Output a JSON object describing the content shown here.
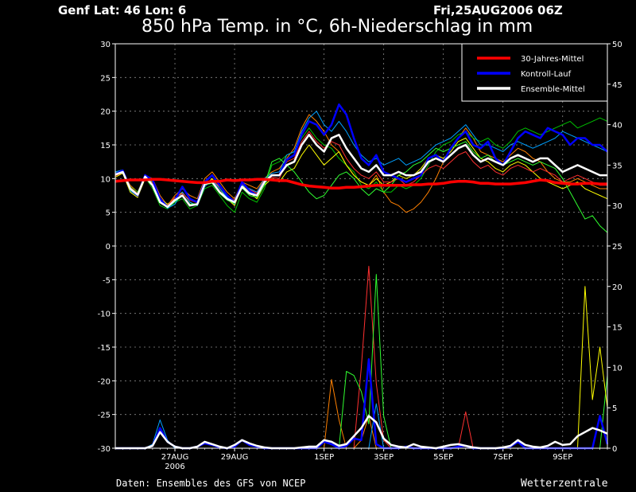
{
  "header": {
    "location": "Genf  Lat: 46 Lon: 6",
    "run": "Fri,25AUG2006 06Z",
    "title": "850 hPa Temp. in °C, 6h-Niederschlag in mm"
  },
  "footer": {
    "source": "Daten: Ensembles des GFS von NCEP",
    "brand": "Wetterzentrale"
  },
  "chart_data": {
    "type": "line",
    "title": "850 hPa Temp. in °C, 6h-Niederschlag in mm",
    "x_ticks": [
      {
        "label": "27AUG",
        "sub": "2006",
        "step": 8
      },
      {
        "label": "29AUG",
        "sub": "",
        "step": 16
      },
      {
        "label": "1SEP",
        "sub": "",
        "step": 28
      },
      {
        "label": "3SEP",
        "sub": "",
        "step": 36
      },
      {
        "label": "5SEP",
        "sub": "",
        "step": 44
      },
      {
        "label": "7SEP",
        "sub": "",
        "step": 52
      },
      {
        "label": "9SEP",
        "sub": "",
        "step": 60
      }
    ],
    "x_range": [
      0,
      66
    ],
    "y_left": {
      "range": [
        -30,
        30
      ],
      "ticks": [
        "30",
        "25",
        "20",
        "15",
        "10",
        "5",
        "0",
        "-5",
        "-10",
        "-15",
        "-20",
        "-25",
        "-30"
      ]
    },
    "y_right": {
      "range": [
        0,
        50
      ],
      "ticks": [
        "50",
        "45",
        "40",
        "35",
        "30",
        "25",
        "20",
        "15",
        "10",
        "5",
        "0"
      ]
    },
    "grid": true,
    "legend": {
      "placement": "top-right",
      "entries": [
        {
          "label": "30-Jahres-Mittel",
          "color": "#ff0000"
        },
        {
          "label": "Kontroll-Lauf",
          "color": "#0000ff"
        },
        {
          "label": "Ensemble-Mittel",
          "color": "#ffffff"
        }
      ]
    },
    "series": [
      {
        "name": "30-Jahres-Mittel",
        "color": "#ff0000",
        "axis": "left",
        "values": [
          9.6,
          9.7,
          9.8,
          9.8,
          9.8,
          9.9,
          9.9,
          9.8,
          9.7,
          9.6,
          9.5,
          9.4,
          9.4,
          9.6,
          9.6,
          9.8,
          9.7,
          9.8,
          9.8,
          9.9,
          9.9,
          9.8,
          9.7,
          9.7,
          9.4,
          9.1,
          8.9,
          8.8,
          8.7,
          8.6,
          8.6,
          8.7,
          8.7,
          8.8,
          8.9,
          9.0,
          9.0,
          9.0,
          9.0,
          9.0,
          9.1,
          9.1,
          9.2,
          9.2,
          9.3,
          9.5,
          9.6,
          9.6,
          9.5,
          9.3,
          9.3,
          9.2,
          9.2,
          9.2,
          9.3,
          9.4,
          9.6,
          9.8,
          9.7,
          9.4,
          9.3,
          9.2,
          9.2,
          9.3,
          9.3,
          9.2,
          9.2
        ]
      },
      {
        "name": "Kontroll-Lauf",
        "color": "#0000ff",
        "axis": "left",
        "values": [
          10.7,
          11.2,
          8.5,
          7.5,
          10.5,
          9.8,
          7.0,
          5.8,
          6.8,
          8.8,
          7.0,
          6.5,
          9.5,
          10.5,
          9.0,
          7.5,
          6.5,
          9.5,
          8.2,
          7.5,
          9.5,
          10.5,
          10.5,
          12.8,
          13.5,
          16.5,
          18.5,
          18.0,
          16.5,
          18.0,
          21.0,
          19.5,
          16.0,
          13.0,
          12.0,
          13.5,
          11.0,
          10.5,
          10.0,
          9.5,
          10.0,
          10.5,
          13.0,
          13.5,
          12.5,
          14.5,
          16.0,
          17.0,
          15.0,
          14.5,
          15.5,
          13.0,
          12.0,
          14.0,
          16.0,
          17.0,
          16.5,
          16.0,
          17.5,
          17.0,
          16.5,
          15.0,
          16.0,
          16.0,
          15.0,
          15.0,
          14.0
        ]
      },
      {
        "name": "Ensemble-Mittel",
        "color": "#ffffff",
        "axis": "left",
        "values": [
          10.6,
          11.0,
          8.5,
          7.6,
          10.3,
          9.0,
          6.5,
          5.8,
          6.8,
          7.5,
          6.0,
          6.2,
          9.2,
          9.5,
          8.0,
          7.0,
          6.5,
          8.8,
          7.8,
          7.5,
          9.5,
          10.5,
          10.5,
          12.0,
          12.5,
          15.0,
          16.5,
          15.0,
          14.0,
          16.0,
          16.5,
          14.5,
          13.0,
          11.5,
          11.0,
          12.0,
          10.5,
          10.5,
          11.0,
          10.5,
          10.5,
          11.0,
          12.5,
          13.0,
          12.5,
          13.5,
          14.5,
          15.0,
          13.5,
          12.5,
          13.0,
          12.5,
          12.0,
          13.0,
          13.5,
          13.0,
          12.5,
          13.0,
          13.0,
          12.0,
          11.0,
          11.5,
          12.0,
          11.5,
          11.0,
          10.5,
          10.5
        ]
      },
      {
        "name": "",
        "color": "#ff8000",
        "axis": "left",
        "values": [
          10.5,
          11.0,
          9.0,
          8.0,
          10.5,
          10.0,
          7.5,
          6.0,
          7.5,
          8.5,
          7.5,
          7.0,
          10.0,
          11.0,
          9.5,
          8.0,
          7.0,
          9.5,
          9.0,
          8.5,
          10.0,
          11.0,
          11.5,
          13.0,
          14.5,
          17.5,
          19.5,
          18.5,
          17.0,
          15.0,
          14.0,
          12.0,
          10.5,
          9.5,
          9.0,
          10.5,
          8.0,
          6.5,
          6.0,
          5.0,
          5.5,
          6.5,
          8.0,
          10.0,
          12.5,
          14.5,
          16.0,
          17.5,
          16.0,
          14.0,
          13.5,
          13.0,
          12.5,
          13.5,
          14.5,
          14.0,
          13.0,
          12.5,
          11.0,
          10.0,
          9.5,
          9.5,
          10.0,
          9.5,
          9.0,
          8.5,
          8.5
        ]
      },
      {
        "name": "",
        "color": "#00c000",
        "axis": "left",
        "values": [
          10.8,
          11.1,
          8.8,
          8.0,
          10.2,
          8.5,
          6.0,
          5.5,
          6.5,
          7.0,
          5.5,
          6.0,
          8.5,
          9.0,
          7.5,
          6.0,
          5.0,
          8.0,
          7.0,
          6.5,
          8.5,
          12.0,
          12.5,
          13.5,
          14.0,
          16.0,
          17.5,
          16.0,
          15.0,
          14.5,
          13.0,
          12.0,
          11.0,
          9.0,
          8.5,
          9.5,
          8.0,
          8.0,
          9.0,
          8.5,
          9.0,
          10.0,
          12.0,
          14.0,
          15.0,
          15.5,
          16.5,
          17.0,
          16.0,
          15.5,
          16.0,
          15.0,
          14.5,
          15.5,
          17.0,
          17.5,
          17.0,
          16.5,
          17.0,
          17.5,
          18.0,
          18.5,
          17.5,
          18.0,
          18.5,
          19.0,
          18.5
        ]
      },
      {
        "name": "",
        "color": "#ffff00",
        "axis": "left",
        "values": [
          10.2,
          10.8,
          8.0,
          7.2,
          10.0,
          9.5,
          7.0,
          6.2,
          7.0,
          8.0,
          6.5,
          6.0,
          9.0,
          10.0,
          8.5,
          7.0,
          6.0,
          9.0,
          8.0,
          7.0,
          9.0,
          10.0,
          9.5,
          11.0,
          11.5,
          13.5,
          15.0,
          13.5,
          12.0,
          13.0,
          14.0,
          12.0,
          10.5,
          9.5,
          9.0,
          10.0,
          9.0,
          9.5,
          10.5,
          10.0,
          10.5,
          11.5,
          13.0,
          13.5,
          13.0,
          14.0,
          15.5,
          16.0,
          14.5,
          13.0,
          12.5,
          11.5,
          11.0,
          12.0,
          12.5,
          12.0,
          11.0,
          10.0,
          9.5,
          9.0,
          8.5,
          9.0,
          9.5,
          8.5,
          8.0,
          7.5,
          7.0
        ]
      },
      {
        "name": "",
        "color": "#00a0ff",
        "axis": "left",
        "values": [
          11.0,
          11.3,
          8.2,
          7.4,
          10.6,
          9.2,
          6.8,
          5.6,
          6.2,
          8.0,
          6.5,
          6.0,
          8.8,
          9.8,
          8.5,
          7.2,
          6.2,
          9.0,
          8.5,
          8.0,
          10.0,
          10.8,
          11.0,
          13.5,
          14.0,
          17.0,
          19.0,
          20.0,
          18.0,
          17.0,
          18.5,
          17.0,
          15.0,
          13.5,
          12.5,
          13.0,
          12.0,
          12.5,
          13.0,
          12.0,
          12.5,
          13.0,
          14.0,
          15.0,
          15.5,
          16.0,
          17.0,
          18.0,
          16.5,
          15.0,
          15.0,
          14.5,
          14.0,
          15.0,
          15.5,
          15.0,
          14.5,
          15.0,
          15.5,
          16.0,
          17.0,
          16.5,
          16.0,
          15.5,
          15.0,
          14.5,
          14.0
        ]
      },
      {
        "name": "",
        "color": "#ff3030",
        "axis": "left",
        "values": [
          10.4,
          10.9,
          8.7,
          7.8,
          10.1,
          9.3,
          6.6,
          6.0,
          7.2,
          7.8,
          6.8,
          6.4,
          9.3,
          9.8,
          8.8,
          7.4,
          6.8,
          9.2,
          8.4,
          7.8,
          9.8,
          10.2,
          10.0,
          12.5,
          13.0,
          15.5,
          17.0,
          15.5,
          14.5,
          15.5,
          15.0,
          13.0,
          11.5,
          10.5,
          10.0,
          11.0,
          9.5,
          9.5,
          10.0,
          9.0,
          9.5,
          10.5,
          11.5,
          12.0,
          11.5,
          12.5,
          13.5,
          14.0,
          12.5,
          11.5,
          12.0,
          11.0,
          10.5,
          11.5,
          12.0,
          11.5,
          11.0,
          11.5,
          11.0,
          10.5,
          9.5,
          10.0,
          10.5,
          10.0,
          9.5,
          9.0,
          9.0
        ]
      },
      {
        "name": "",
        "color": "#30ff30",
        "axis": "left",
        "values": [
          10.9,
          11.2,
          8.3,
          7.6,
          10.4,
          9.1,
          6.4,
          5.7,
          6.6,
          7.4,
          6.2,
          6.3,
          9.1,
          9.3,
          7.8,
          6.8,
          6.3,
          8.6,
          7.5,
          7.2,
          9.0,
          12.5,
          13.0,
          12.0,
          11.0,
          9.5,
          8.0,
          7.0,
          7.5,
          9.0,
          10.5,
          11.0,
          10.0,
          8.5,
          7.5,
          8.5,
          8.0,
          9.0,
          10.5,
          11.0,
          12.0,
          12.5,
          13.5,
          14.5,
          14.0,
          14.5,
          15.0,
          15.5,
          14.0,
          13.0,
          13.5,
          12.5,
          12.0,
          12.5,
          13.0,
          12.5,
          12.0,
          12.5,
          12.0,
          11.5,
          10.0,
          8.0,
          6.0,
          4.0,
          4.5,
          3.0,
          2.0
        ]
      },
      {
        "name": "Kontroll-Lauf Niederschlag",
        "color": "#0000ff",
        "axis": "right",
        "values": [
          0,
          0,
          0,
          0,
          0,
          0.3,
          2.5,
          0.8,
          0.2,
          0,
          0,
          0.2,
          0.6,
          0.4,
          0.1,
          0,
          0.2,
          1.0,
          0.4,
          0.2,
          0,
          0,
          0,
          0,
          0,
          0,
          0,
          0,
          0.8,
          0.5,
          0,
          0.3,
          1.2,
          1.0,
          11.0,
          0.5,
          0,
          0,
          0,
          0.2,
          0,
          0,
          0,
          0,
          0,
          0,
          0.2,
          0.3,
          0,
          0,
          0,
          0,
          0,
          0.2,
          0.8,
          0,
          0,
          0,
          0,
          0,
          0,
          0,
          0,
          0,
          0,
          4.0,
          0.5
        ]
      },
      {
        "name": "Ensemble-Mittel Niederschlag",
        "color": "#ffffff",
        "axis": "right",
        "values": [
          0,
          0,
          0,
          0,
          0,
          0.3,
          2.0,
          0.8,
          0.2,
          0,
          0,
          0.2,
          0.8,
          0.5,
          0.2,
          0,
          0.4,
          1.0,
          0.6,
          0.3,
          0.1,
          0,
          0,
          0,
          0,
          0.1,
          0.2,
          0.2,
          1.0,
          0.8,
          0.3,
          0.5,
          1.5,
          2.5,
          4.0,
          3.2,
          1.2,
          0.4,
          0.2,
          0.1,
          0.5,
          0.2,
          0.1,
          0,
          0.2,
          0.4,
          0.5,
          0.3,
          0.1,
          0,
          0,
          0,
          0.1,
          0.3,
          1.0,
          0.4,
          0.2,
          0.1,
          0.3,
          0.8,
          0.4,
          0.5,
          1.5,
          2.0,
          2.5,
          2.2,
          1.8
        ]
      },
      {
        "name": "",
        "color": "#ff8000",
        "axis": "right",
        "values": [
          0,
          0,
          0,
          0,
          0,
          0,
          0,
          0,
          0,
          0,
          0,
          0,
          0,
          0,
          0,
          0,
          0,
          0,
          0,
          0,
          0,
          0,
          0,
          0,
          0,
          0,
          0,
          0,
          0,
          8.5,
          3.5,
          0,
          0,
          1.0,
          4.0,
          0,
          0,
          0,
          0,
          0,
          0,
          0,
          0,
          0,
          0,
          0,
          0,
          0,
          0,
          0,
          0,
          0,
          0,
          0,
          0,
          0,
          0,
          0,
          0,
          0,
          0,
          0,
          0,
          0,
          0,
          0,
          0
        ]
      },
      {
        "name": "",
        "color": "#ff3030",
        "axis": "right",
        "values": [
          0,
          0,
          0,
          0,
          0,
          0,
          0,
          0,
          0,
          0,
          0,
          0,
          0,
          0,
          0,
          0,
          0,
          0,
          0,
          0,
          0,
          0,
          0,
          0,
          0,
          0,
          0,
          0,
          0,
          0,
          0,
          0,
          0,
          10.0,
          22.5,
          8.0,
          1.0,
          0,
          0,
          0,
          0,
          0,
          0,
          0,
          0,
          0,
          0,
          4.5,
          0,
          0,
          0,
          0,
          0,
          0,
          0,
          0,
          0,
          0,
          0,
          0,
          0,
          0,
          0,
          0,
          0,
          0,
          0
        ]
      },
      {
        "name": "",
        "color": "#30ff30",
        "axis": "right",
        "values": [
          0,
          0,
          0,
          0,
          0,
          0,
          0,
          0,
          0,
          0,
          0,
          0,
          0,
          0,
          0,
          0,
          0,
          0,
          0,
          0,
          0,
          0,
          0,
          0,
          0,
          0,
          0,
          0,
          0,
          0,
          0,
          9.5,
          9.0,
          7.0,
          3.0,
          21.5,
          4.0,
          0,
          0,
          0,
          0,
          0,
          0,
          0,
          0,
          0,
          0,
          0,
          0,
          0,
          0,
          0,
          0,
          0,
          0,
          0,
          0,
          0,
          0,
          0,
          0,
          0,
          0,
          0,
          0,
          0,
          9.0
        ]
      },
      {
        "name": "",
        "color": "#ffff00",
        "axis": "right",
        "values": [
          0,
          0,
          0,
          0,
          0,
          0,
          0,
          0,
          0,
          0,
          0,
          0,
          0,
          0,
          0,
          0,
          0,
          0,
          0,
          0,
          0,
          0,
          0,
          0,
          0,
          0,
          0,
          0,
          0,
          0,
          0,
          0,
          0,
          0,
          0,
          0,
          0,
          0,
          0,
          0,
          0,
          0,
          0,
          0,
          0,
          0,
          0,
          0,
          0,
          0,
          0,
          0,
          0,
          0,
          0,
          0,
          0,
          0,
          0,
          0,
          0,
          0,
          0,
          20.0,
          6.0,
          12.5,
          5.0
        ]
      },
      {
        "name": "",
        "color": "#00a0ff",
        "axis": "right",
        "values": [
          0,
          0,
          0,
          0,
          0,
          0.5,
          3.5,
          1.0,
          0,
          0,
          0,
          0,
          0,
          0,
          0,
          0,
          0,
          0,
          0,
          0,
          0,
          0,
          0,
          0,
          0,
          0,
          0,
          0,
          0,
          0,
          0,
          0,
          0,
          0,
          0,
          5.5,
          0,
          0,
          0,
          0,
          0,
          0,
          0,
          0,
          0,
          0,
          0,
          0,
          0,
          0,
          0,
          0,
          0,
          0,
          0,
          0,
          0,
          0,
          0,
          0,
          0,
          0,
          0,
          0,
          0,
          0,
          0
        ]
      }
    ]
  }
}
